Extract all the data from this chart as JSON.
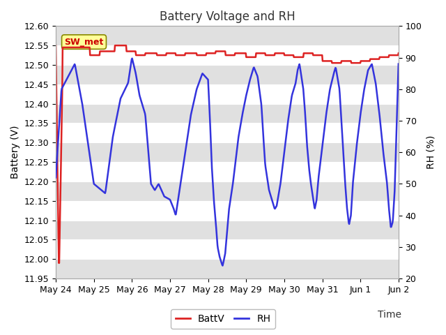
{
  "title": "Battery Voltage and RH",
  "xlabel": "Time",
  "ylabel_left": "Battery (V)",
  "ylabel_right": "RH (%)",
  "annotation": "SW_met",
  "annotation_color": "#cc0000",
  "annotation_bg": "#ffff99",
  "annotation_border": "#888800",
  "left_ylim": [
    11.95,
    12.6
  ],
  "right_ylim": [
    20,
    100
  ],
  "left_yticks": [
    11.95,
    12.0,
    12.05,
    12.1,
    12.15,
    12.2,
    12.25,
    12.3,
    12.35,
    12.4,
    12.45,
    12.5,
    12.55,
    12.6
  ],
  "right_yticks": [
    20,
    30,
    40,
    50,
    60,
    70,
    80,
    90,
    100
  ],
  "xtick_labels": [
    "May 24",
    "May 25",
    "May 26",
    "May 27",
    "May 28",
    "May 29",
    "May 30",
    "May 31",
    "Jun 1",
    "Jun 2"
  ],
  "bg_color": "#ffffff",
  "plot_bg_color": "#ffffff",
  "grid_stripe_color": "#e0e0e0",
  "batt_color": "#dd2222",
  "rh_color": "#3333dd",
  "legend_batt": "BattV",
  "legend_rh": "RH",
  "title_fontsize": 12,
  "axis_fontsize": 10,
  "tick_fontsize": 9
}
